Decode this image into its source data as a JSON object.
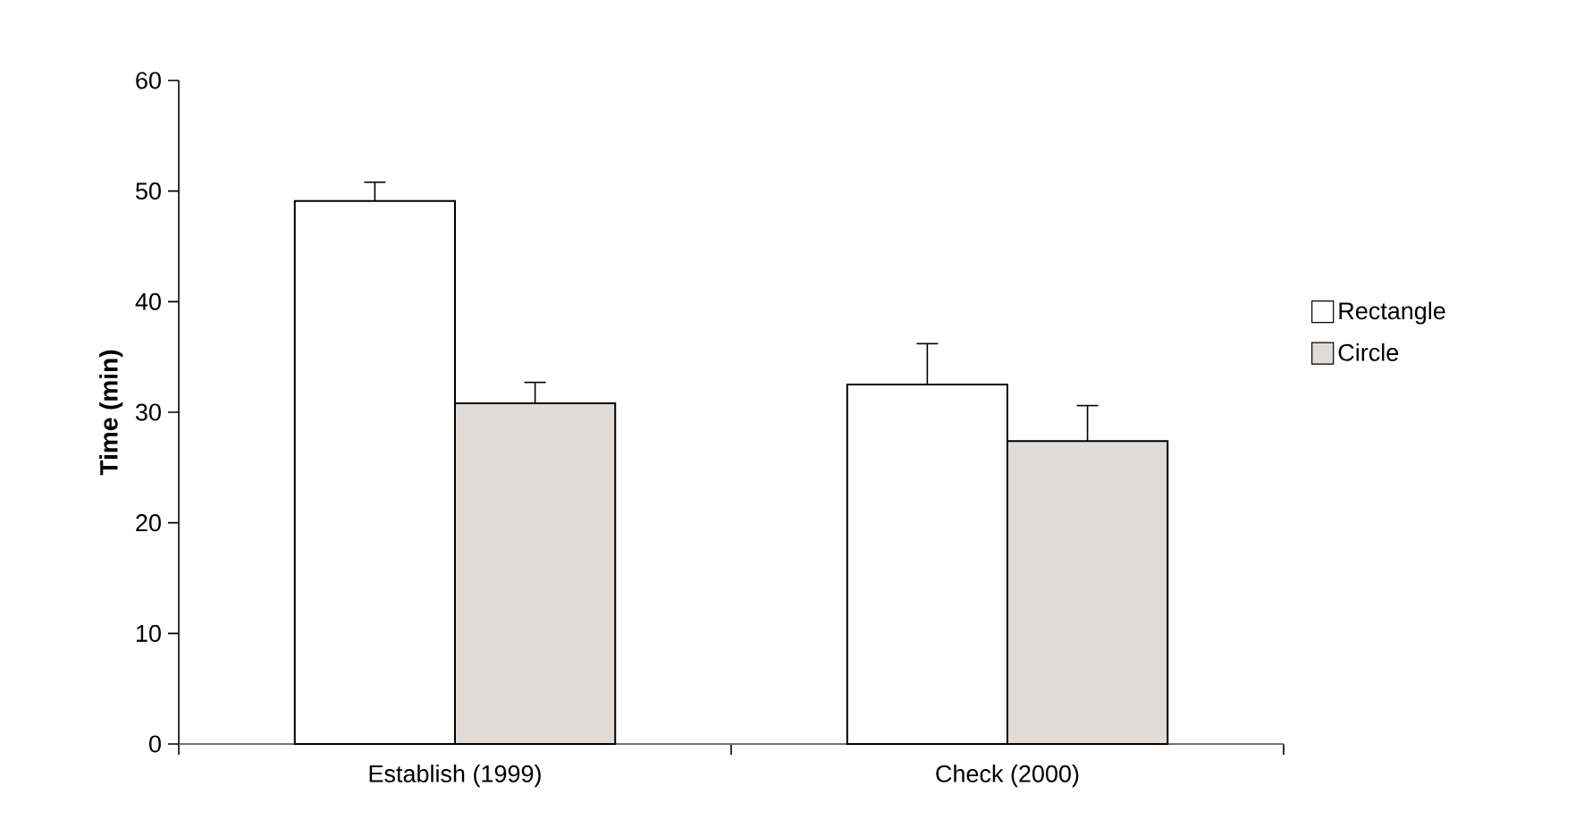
{
  "chart_data": {
    "type": "bar",
    "ylabel": "Time (min)",
    "categories": [
      "Establish (1999)",
      "Check (2000)"
    ],
    "series": [
      {
        "name": "Rectangle",
        "color": "#ffffff",
        "values": [
          49.1,
          32.5
        ],
        "errors": [
          [
            49.1,
            50.8
          ],
          [
            32.5,
            36.2
          ]
        ]
      },
      {
        "name": "Circle",
        "color": "#dfdbd8",
        "values": [
          30.8,
          27.4
        ],
        "errors": [
          [
            30.8,
            32.7
          ],
          [
            27.4,
            30.6
          ]
        ]
      }
    ],
    "ylim": [
      0,
      60
    ],
    "yticks": [
      0,
      10,
      20,
      30,
      40,
      50,
      60
    ],
    "grid": false,
    "legend": "right"
  }
}
